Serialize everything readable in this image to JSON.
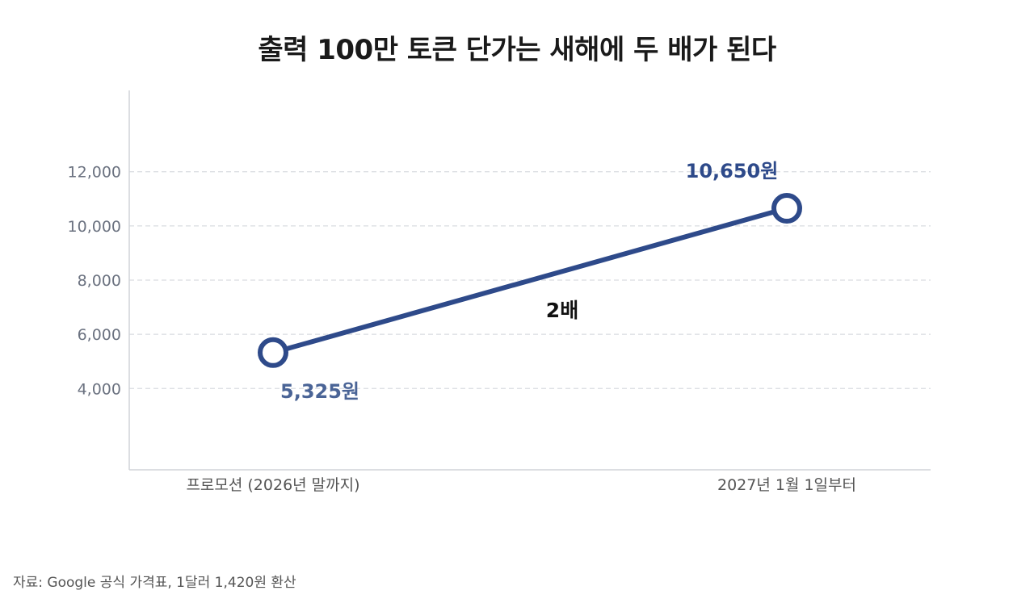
{
  "chart_data": {
    "type": "line",
    "title": "출력 100만 토큰 단가는 새해에 두 배가 된다",
    "categories": [
      "프로모션 (2026년 말까지)",
      "2027년 1월 1일부터"
    ],
    "series": [
      {
        "values": [
          5325,
          10650
        ],
        "data_labels": [
          "5,325원",
          "10,650원"
        ],
        "color": "#2e4a8a",
        "label_colors": [
          "#4a6496",
          "#2e4a8a"
        ]
      }
    ],
    "yticks": [
      4000,
      6000,
      8000,
      10000,
      12000
    ],
    "ytick_labels": [
      "4,000",
      "6,000",
      "8,000",
      "10,000",
      "12,000"
    ],
    "ylim": [
      1000,
      15000
    ],
    "grid": true,
    "annotation": "2배",
    "xlabel": "",
    "ylabel": ""
  },
  "source_note": "자료: Google 공식 가격표, 1달러 1,420원 환산"
}
